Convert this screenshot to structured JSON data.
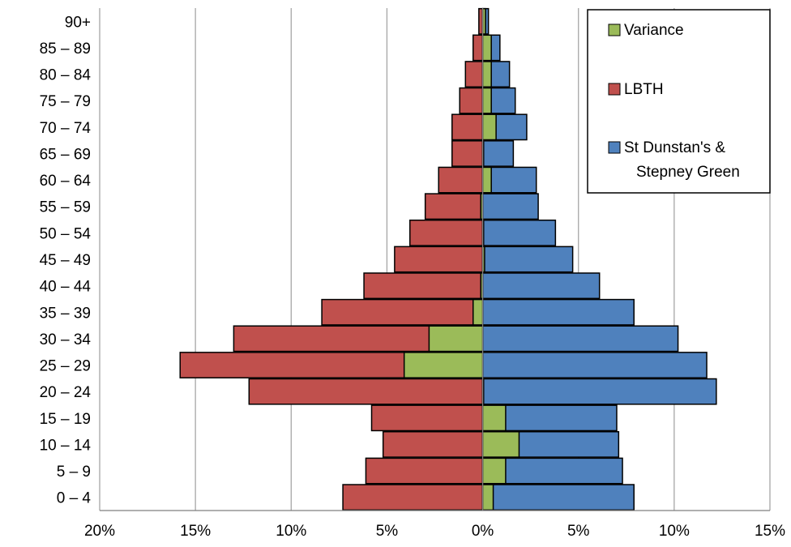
{
  "chart_data": {
    "type": "bar",
    "orientation": "horizontal",
    "title": "",
    "xlabel": "",
    "ylabel": "",
    "categories": [
      "0 – 4",
      "5 – 9",
      "10 – 14",
      "15 – 19",
      "20 – 24",
      "25 – 29",
      "30 – 34",
      "35 – 39",
      "40 – 44",
      "45 – 49",
      "50 – 54",
      "55 – 59",
      "60 – 64",
      "65 – 69",
      "70 – 74",
      "75 – 79",
      "80 – 84",
      "85 – 89",
      "90+"
    ],
    "x_ticks": [
      {
        "value": -20,
        "label": "20%"
      },
      {
        "value": -15,
        "label": "15%"
      },
      {
        "value": -10,
        "label": "10%"
      },
      {
        "value": -5,
        "label": "5%"
      },
      {
        "value": 0,
        "label": "0%"
      },
      {
        "value": 5,
        "label": "5%"
      },
      {
        "value": 10,
        "label": "10%"
      },
      {
        "value": 15,
        "label": "15%"
      }
    ],
    "xlim": [
      -20,
      15
    ],
    "grid": true,
    "legend_position": "top-right",
    "series": [
      {
        "name": "LBTH",
        "color": "#c0504d",
        "values": [
          -7.3,
          -6.1,
          -5.2,
          -5.8,
          -12.2,
          -15.8,
          -13.0,
          -8.4,
          -6.2,
          -4.6,
          -3.8,
          -3.0,
          -2.3,
          -1.6,
          -1.6,
          -1.2,
          -0.9,
          -0.5,
          -0.2
        ]
      },
      {
        "name": "St Dunstan's & Stepney Green",
        "color": "#4f81bd",
        "values": [
          7.9,
          7.3,
          7.1,
          7.0,
          12.2,
          11.7,
          10.2,
          7.9,
          6.1,
          4.7,
          3.8,
          2.9,
          2.8,
          1.6,
          2.3,
          1.7,
          1.4,
          0.9,
          0.3
        ]
      },
      {
        "name": "Variance",
        "color": "#9bbb59",
        "values": [
          0.55,
          1.2,
          1.9,
          1.2,
          0.05,
          -4.1,
          -2.8,
          -0.5,
          -0.1,
          0.1,
          0.05,
          -0.1,
          0.45,
          0.05,
          0.7,
          0.45,
          0.45,
          0.45,
          0.15
        ]
      }
    ],
    "legend": [
      {
        "label": "Variance",
        "color": "#9bbb59"
      },
      {
        "label": "LBTH",
        "color": "#c0504d"
      },
      {
        "label_lines": [
          "St Dunstan's &",
          "Stepney Green"
        ],
        "color": "#4f81bd"
      }
    ]
  }
}
